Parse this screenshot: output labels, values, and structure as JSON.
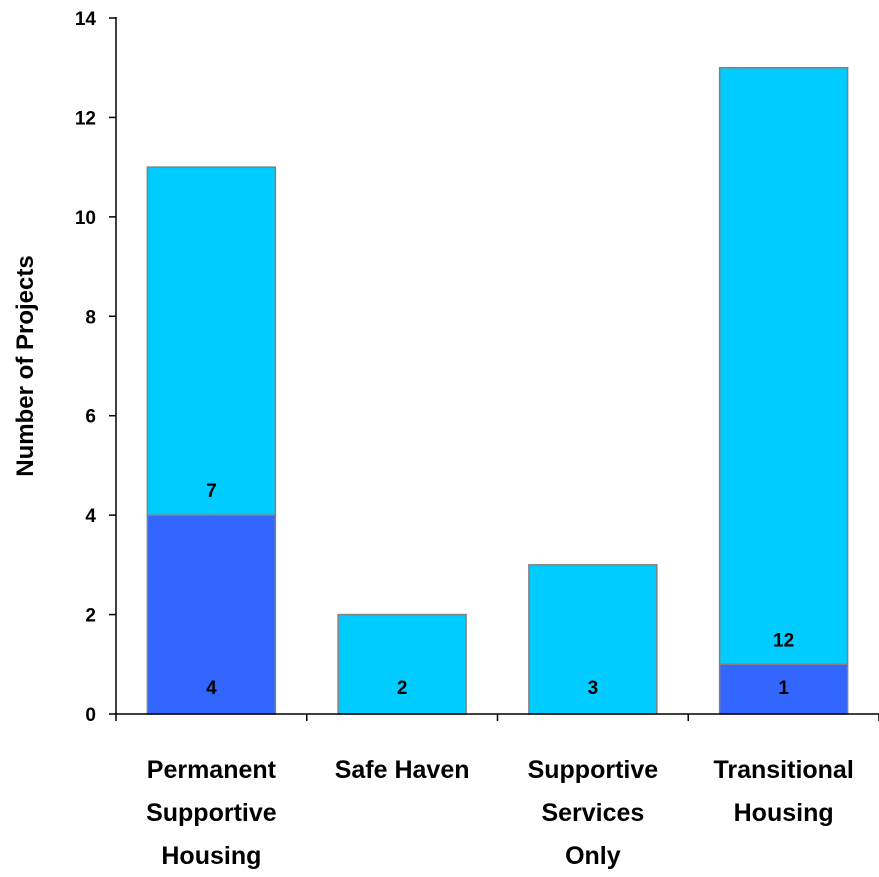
{
  "chart_data": {
    "type": "bar",
    "stacked": true,
    "categories": [
      [
        "Permanent",
        "Supportive",
        "Housing"
      ],
      [
        "Safe Haven"
      ],
      [
        "Supportive",
        "Services",
        "Only"
      ],
      [
        "Transitional",
        "Housing"
      ]
    ],
    "series": [
      {
        "values": [
          4,
          0,
          0,
          1
        ],
        "labels": [
          "4",
          "",
          "",
          "1"
        ],
        "color": "#3366FF"
      },
      {
        "values": [
          7,
          2,
          3,
          12
        ],
        "labels": [
          "7",
          "2",
          "3",
          "12"
        ],
        "color": "#00CCFF"
      }
    ],
    "title": "",
    "xlabel": "",
    "ylabel": "Number of Projects",
    "ylim": [
      0,
      14
    ],
    "yticks": [
      0,
      2,
      4,
      6,
      8,
      10,
      12,
      14
    ],
    "grid": false,
    "legend": "none"
  }
}
